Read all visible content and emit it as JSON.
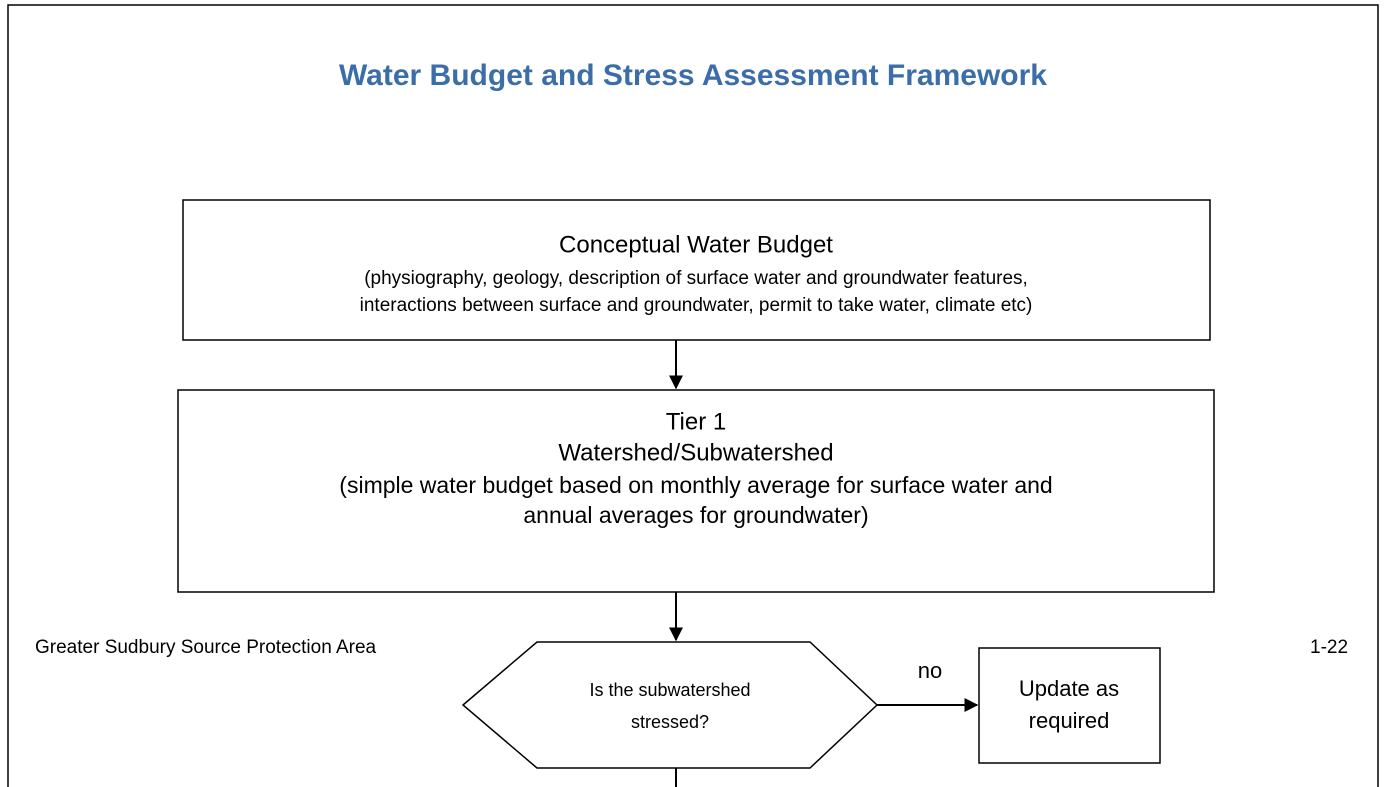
{
  "title": "Water Budget and Stress Assessment Framework",
  "nodes": [
    {
      "lines": [
        "Conceptual Water Budget",
        "(physiography, geology, description of surface water and groundwater features,",
        "interactions between surface and groundwater, permit to take water, climate etc)"
      ]
    },
    {
      "lines": [
        "Tier 1",
        "Watershed/Subwatershed",
        "(simple water budget based on monthly average for surface water and",
        "annual averages for groundwater)"
      ]
    },
    {
      "lines": [
        "Is the subwatershed",
        "stressed?"
      ]
    },
    {
      "lines": [
        "Update as",
        "required"
      ]
    }
  ],
  "edges": [
    {
      "label": "no"
    }
  ],
  "footer": {
    "left": "Greater Sudbury Source Protection Area",
    "right": "1-22"
  }
}
